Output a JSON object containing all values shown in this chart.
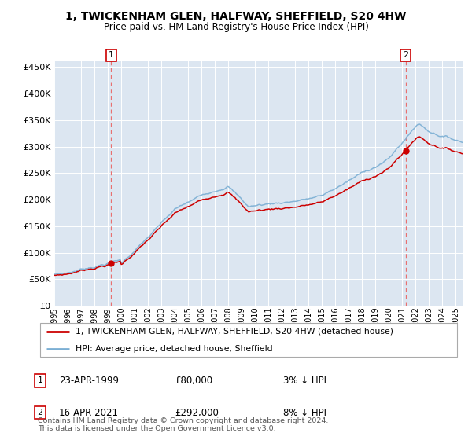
{
  "title": "1, TWICKENHAM GLEN, HALFWAY, SHEFFIELD, S20 4HW",
  "subtitle": "Price paid vs. HM Land Registry's House Price Index (HPI)",
  "legend_line1": "1, TWICKENHAM GLEN, HALFWAY, SHEFFIELD, S20 4HW (detached house)",
  "legend_line2": "HPI: Average price, detached house, Sheffield",
  "annotation1_date": "23-APR-1999",
  "annotation1_price": "£80,000",
  "annotation1_hpi": "3% ↓ HPI",
  "annotation2_date": "16-APR-2021",
  "annotation2_price": "£292,000",
  "annotation2_hpi": "8% ↓ HPI",
  "footnote": "Contains HM Land Registry data © Crown copyright and database right 2024.\nThis data is licensed under the Open Government Licence v3.0.",
  "hpi_color": "#7bafd4",
  "price_color": "#cc0000",
  "dot_color": "#cc0000",
  "vline_color": "#e87070",
  "bg_color": "#dce6f1",
  "purchase1_year": 1999.29,
  "purchase1_value": 80000,
  "purchase2_year": 2021.29,
  "purchase2_value": 292000,
  "xstart": 1995.0,
  "xend": 2025.5,
  "yticks": [
    0,
    50000,
    100000,
    150000,
    200000,
    250000,
    300000,
    350000,
    400000,
    450000
  ],
  "ylim_max": 460000
}
